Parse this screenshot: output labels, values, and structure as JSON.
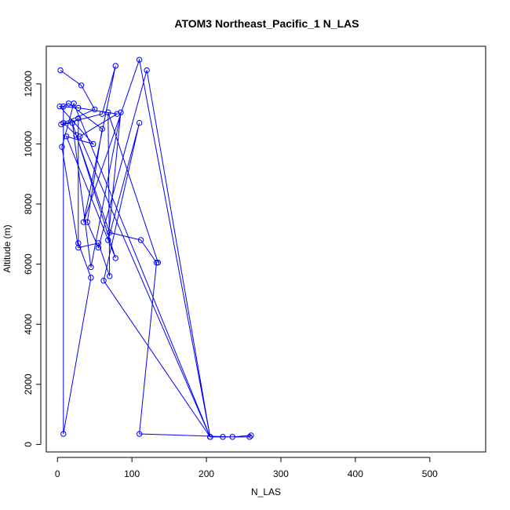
{
  "chart_data": {
    "type": "line",
    "title": "ATOM3 Northeast_Pacific_1 N_LAS",
    "xlabel": "N_LAS",
    "ylabel": "Altitude (m)",
    "xlim": [
      -15,
      575
    ],
    "ylim": [
      -250,
      13250
    ],
    "xticks": [
      0,
      100,
      200,
      300,
      400,
      500
    ],
    "yticks": [
      0,
      2000,
      4000,
      6000,
      8000,
      10000,
      12000
    ],
    "grid": false,
    "series": [
      {
        "color": "#0000ff",
        "marker": "open-circle",
        "x": [
          4,
          32,
          50,
          8,
          25,
          70,
          112,
          133,
          110,
          235,
          260,
          258,
          222,
          205,
          110,
          35,
          78,
          60,
          5,
          20,
          28,
          28,
          45,
          8,
          8,
          15,
          60,
          40,
          55,
          120,
          205,
          62,
          110,
          68,
          85,
          45,
          20,
          78,
          12,
          48,
          3,
          28,
          80,
          30,
          205,
          22,
          6,
          28,
          55,
          70,
          68,
          135
        ],
        "y": [
          12450,
          11950,
          11150,
          10700,
          10300,
          7050,
          6800,
          6050,
          350,
          250,
          300,
          250,
          250,
          250,
          12800,
          7400,
          12600,
          11000,
          10650,
          10700,
          10850,
          6700,
          5550,
          350,
          11250,
          11350,
          10500,
          7400,
          6550,
          12450,
          250,
          5450,
          10700,
          6800,
          11050,
          5900,
          10700,
          6200,
          10250,
          10000,
          11250,
          11200,
          11000,
          10250,
          250,
          11350,
          9900,
          6550,
          6700,
          5600,
          11050,
          6050
        ]
      }
    ]
  }
}
